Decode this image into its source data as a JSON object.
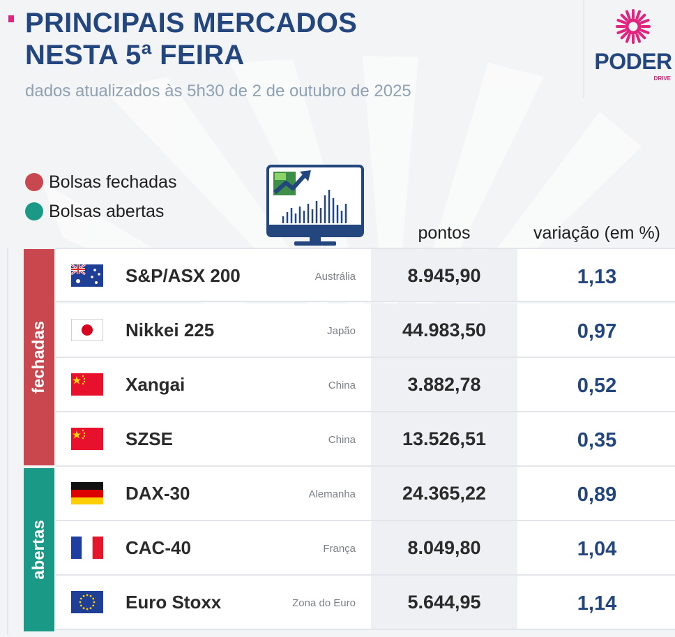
{
  "header": {
    "title_line1": "PRINCIPAIS MERCADOS",
    "title_line2": "NESTA 5ª FEIRA",
    "subtitle": "dados atualizados às 5h30 de 2 de outubro de 2025"
  },
  "logo": {
    "name": "PODER",
    "sub": "DRIVE",
    "icon": "flower-burst-icon"
  },
  "colors": {
    "accent_pink": "#e0247f",
    "navy": "#23467f",
    "closed_red": "#c9484f",
    "open_teal": "#1a9a86"
  },
  "legend": {
    "closed_label": "Bolsas fechadas",
    "open_label": "Bolsas abertas"
  },
  "columns": {
    "pontos": "pontos",
    "variacao": "variação (em %)"
  },
  "groups": {
    "closed": "fechadas",
    "open": "abertas"
  },
  "markets": [
    {
      "name": "S&P/ASX 200",
      "country": "Austrália",
      "points": "8.945,90",
      "variation": "1,13",
      "flag": "australia-flag-icon",
      "status": "closed"
    },
    {
      "name": "Nikkei 225",
      "country": "Japão",
      "points": "44.983,50",
      "variation": "0,97",
      "flag": "japan-flag-icon",
      "status": "closed"
    },
    {
      "name": "Xangai",
      "country": "China",
      "points": "3.882,78",
      "variation": "0,52",
      "flag": "china-flag-icon",
      "status": "closed"
    },
    {
      "name": "SZSE",
      "country": "China",
      "points": "13.526,51",
      "variation": "0,35",
      "flag": "china-flag-icon",
      "status": "closed"
    },
    {
      "name": "DAX-30",
      "country": "Alemanha",
      "points": "24.365,22",
      "variation": "0,89",
      "flag": "germany-flag-icon",
      "status": "open"
    },
    {
      "name": "CAC-40",
      "country": "França",
      "points": "8.049,80",
      "variation": "1,04",
      "flag": "france-flag-icon",
      "status": "open"
    },
    {
      "name": "Euro Stoxx",
      "country": "Zona do Euro",
      "points": "5.644,95",
      "variation": "1,14",
      "flag": "eu-flag-icon",
      "status": "open"
    }
  ]
}
